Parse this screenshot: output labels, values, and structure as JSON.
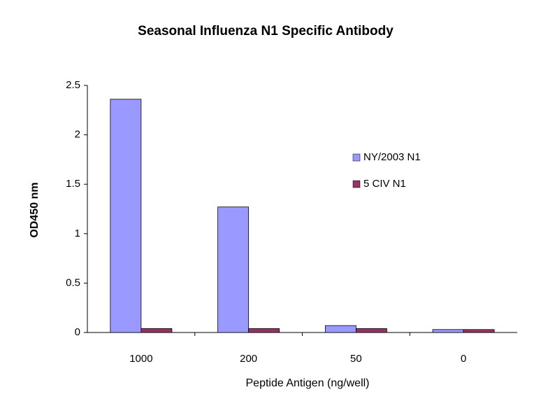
{
  "chart_data": {
    "type": "bar",
    "title": "Seasonal Influenza N1 Specific Antibody",
    "x_label": "Peptide Antigen (ng/well)",
    "y_label": "OD450 nm",
    "categories": [
      "1000",
      "200",
      "50",
      "0"
    ],
    "series": [
      {
        "name": "NY/2003 N1",
        "color": "#9999ff",
        "values": [
          2.36,
          1.27,
          0.07,
          0.03
        ]
      },
      {
        "name": "5 CIV N1",
        "color": "#993366",
        "values": [
          0.04,
          0.04,
          0.04,
          0.03
        ]
      }
    ],
    "ylim": [
      0,
      2.5
    ],
    "yticks": [
      0,
      0.5,
      1,
      1.5,
      2,
      2.5
    ],
    "legend": "right"
  }
}
